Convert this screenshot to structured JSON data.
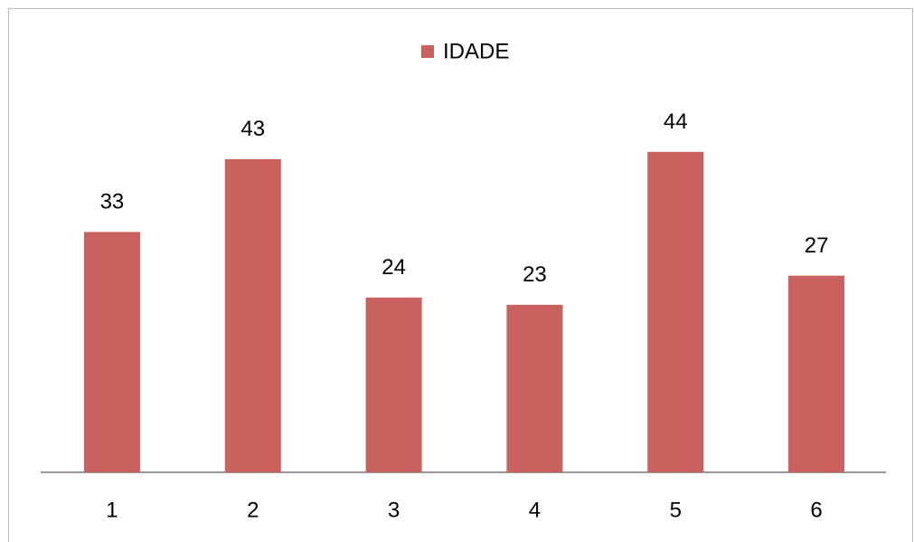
{
  "chart_data": {
    "type": "bar",
    "categories": [
      "1",
      "2",
      "3",
      "4",
      "5",
      "6"
    ],
    "series": [
      {
        "name": "IDADE",
        "color": "#c9625e",
        "values": [
          33,
          43,
          24,
          23,
          44,
          27
        ]
      }
    ]
  }
}
